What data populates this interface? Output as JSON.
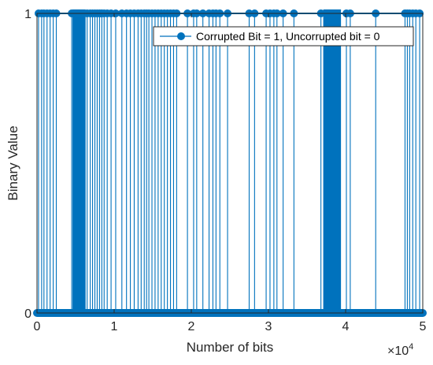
{
  "chart_data": {
    "type": "stem",
    "xlabel": "Number of bits",
    "ylabel": "Binary Value",
    "x_exponent_label": "×10",
    "x_exponent_power": "4",
    "xlim": [
      0,
      50000
    ],
    "ylim": [
      0,
      1
    ],
    "x_ticks": [
      0,
      10000,
      20000,
      30000,
      40000,
      50000
    ],
    "x_tick_labels": [
      "0",
      "1",
      "2",
      "3",
      "4",
      "5"
    ],
    "y_ticks": [
      0,
      1
    ],
    "y_tick_labels": [
      "0",
      "1"
    ],
    "grid": false,
    "legend_position": "top-right",
    "series": [
      {
        "name": "Corrupted Bit = 1, Uncorrupted bit = 0",
        "color": "#0072BD",
        "baseline": 0,
        "high_value": 1,
        "dense_ranges": [
          [
            4600,
            6300
          ],
          [
            37100,
            39400
          ]
        ],
        "corrupted_x": [
          200,
          600,
          900,
          1300,
          1700,
          2100,
          2500,
          4500,
          6500,
          6900,
          7200,
          7500,
          7800,
          8100,
          8400,
          8700,
          9100,
          9600,
          10200,
          11000,
          11600,
          12100,
          12600,
          13100,
          13500,
          13900,
          14200,
          14500,
          14900,
          15300,
          15700,
          16100,
          16500,
          16900,
          17300,
          17700,
          18100,
          19500,
          20300,
          20700,
          21500,
          22300,
          22800,
          23200,
          23700,
          24700,
          27500,
          28200,
          29700,
          30200,
          30700,
          31100,
          31900,
          33300,
          36800,
          40100,
          40600,
          43900,
          47700,
          48000,
          48300,
          48700,
          49100,
          49600
        ]
      }
    ]
  }
}
